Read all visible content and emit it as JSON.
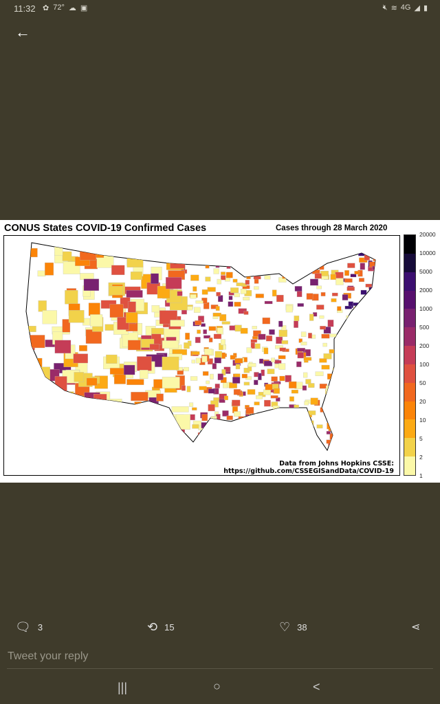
{
  "status_bar": {
    "time": "11:32",
    "temperature": "72°",
    "icons": [
      "photo-icon",
      "cloud-icon",
      "save-icon",
      "mute-icon",
      "wifi-icon",
      "4g-icon",
      "signal-icon",
      "battery-icon"
    ]
  },
  "header": {
    "back_icon": "arrow-left-icon"
  },
  "image": {
    "title": "CONUS States COVID-19 Confirmed Cases",
    "subtitle": "Cases through 28 March 2020",
    "credit_line1": "Data from Johns Hopkins CSSE:",
    "credit_line2": "https://github.com/CSSEGISandData/COVID-19",
    "colorbar": {
      "ticks": [
        "20000",
        "10000",
        "5000",
        "2000",
        "1000",
        "500",
        "200",
        "100",
        "50",
        "20",
        "10",
        "5",
        "2",
        "1"
      ],
      "colors": [
        "#000004",
        "#160b39",
        "#3b0f70",
        "#57106e",
        "#782170",
        "#9a2b68",
        "#c53c57",
        "#df5140",
        "#f1681f",
        "#fb8408",
        "#fcaa14",
        "#f2d24a",
        "#fbf8a8"
      ]
    }
  },
  "actions": {
    "replies": "3",
    "retweets": "15",
    "likes": "38"
  },
  "reply": {
    "placeholder": "Tweet your reply"
  },
  "nav": {
    "recents": "|||",
    "home": "○",
    "back": "<"
  }
}
